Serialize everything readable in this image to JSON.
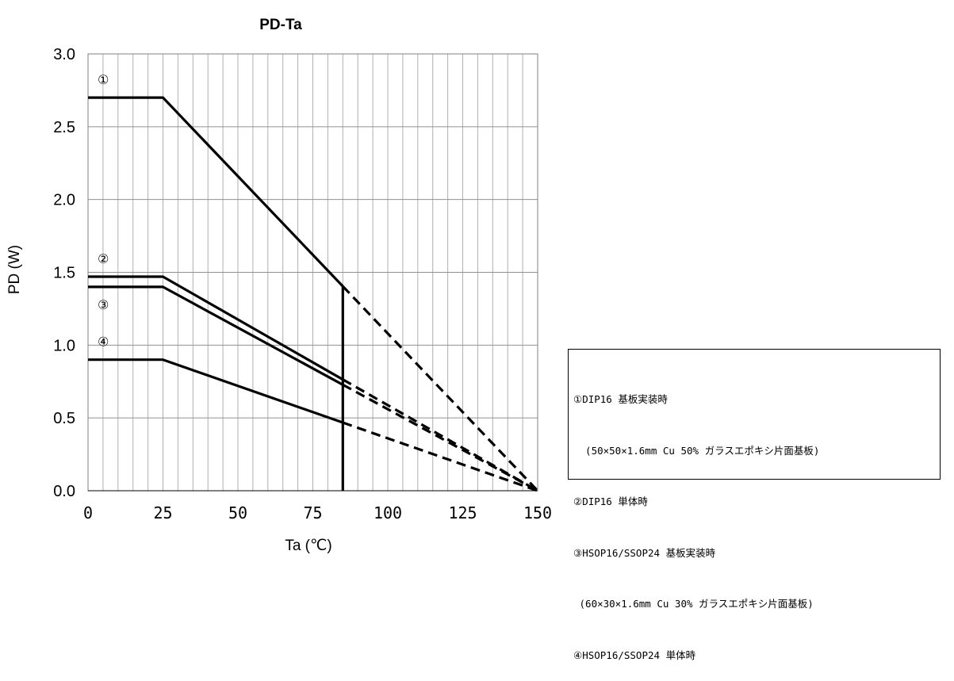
{
  "chart_data": {
    "type": "line",
    "title": "PD-Ta",
    "xlabel": "Ta (℃)",
    "ylabel": "PD (W)",
    "xlim": [
      0,
      150
    ],
    "ylim": [
      0,
      3.0
    ],
    "xticks": [
      0,
      25,
      50,
      75,
      100,
      125,
      150
    ],
    "xtick_labels": [
      "0",
      "25",
      "50",
      "75",
      "100",
      "125",
      "150"
    ],
    "yticks": [
      0,
      0.5,
      1.0,
      1.5,
      2.0,
      2.5,
      3.0
    ],
    "ytick_labels": [
      "0.0",
      "0.5",
      "1.0",
      "1.5",
      "2.0",
      "2.5",
      "3.0"
    ],
    "grid": true,
    "marker_line": {
      "x": 85
    },
    "series": [
      {
        "name": "①",
        "solid": [
          [
            0,
            2.7
          ],
          [
            25,
            2.7
          ],
          [
            85,
            1.404
          ]
        ],
        "dashed": [
          [
            85,
            1.404
          ],
          [
            150,
            0
          ]
        ]
      },
      {
        "name": "②",
        "solid": [
          [
            0,
            1.47
          ],
          [
            25,
            1.47
          ],
          [
            85,
            0.764
          ]
        ],
        "dashed": [
          [
            85,
            0.764
          ],
          [
            150,
            0
          ]
        ]
      },
      {
        "name": "③",
        "solid": [
          [
            0,
            1.4
          ],
          [
            25,
            1.4
          ],
          [
            85,
            0.728
          ]
        ],
        "dashed": [
          [
            85,
            0.728
          ],
          [
            150,
            0
          ]
        ]
      },
      {
        "name": "④",
        "solid": [
          [
            0,
            0.9
          ],
          [
            25,
            0.9
          ],
          [
            85,
            0.468
          ]
        ],
        "dashed": [
          [
            85,
            0.468
          ],
          [
            150,
            0
          ]
        ]
      }
    ],
    "legend": {
      "placement": "right",
      "lines": [
        "①DIP16 基板実装時",
        "  (50×50×1.6mm Cu 50% ガラスエポキシ片面基板)",
        "②DIP16 単体時",
        "③HSOP16/SSOP24 基板実装時",
        " (60×30×1.6mm Cu 30% ガラスエポキシ片面基板)",
        "④HSOP16/SSOP24 単体時"
      ]
    }
  }
}
